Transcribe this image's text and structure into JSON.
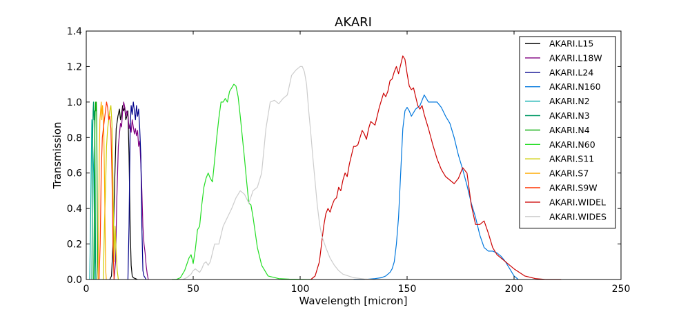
{
  "chart_data": {
    "type": "line",
    "title": "AKARI",
    "xlabel": "Wavelength [micron]",
    "ylabel": "Transmission",
    "xlim": [
      0,
      250
    ],
    "ylim": [
      0,
      1.4
    ],
    "xticks": [
      0,
      50,
      100,
      150,
      200,
      250
    ],
    "yticks": [
      0.0,
      0.2,
      0.4,
      0.6,
      0.8,
      1.0,
      1.2,
      1.4
    ],
    "xtick_labels": [
      "0",
      "50",
      "100",
      "150",
      "200",
      "250"
    ],
    "ytick_labels": [
      "0.0",
      "0.2",
      "0.4",
      "0.6",
      "0.8",
      "1.0",
      "1.2",
      "1.4"
    ],
    "grid": false,
    "legend_position": "top-right",
    "series": [
      {
        "name": "AKARI.L15",
        "color": "#000000",
        "x": [
          11.0,
          11.8,
          12.5,
          13.3,
          14.0,
          14.8,
          15.5,
          16.0,
          16.5,
          17.0,
          17.5,
          18.0,
          18.5,
          19.0,
          19.5,
          20.0,
          20.5,
          21.0,
          21.5,
          22.0,
          23.0,
          24.0
        ],
        "y": [
          0.0,
          0.02,
          0.2,
          0.55,
          0.85,
          0.92,
          0.96,
          0.9,
          0.93,
          0.98,
          0.95,
          0.97,
          0.9,
          0.92,
          0.95,
          0.7,
          0.3,
          0.08,
          0.02,
          0.01,
          0.005,
          0.0
        ]
      },
      {
        "name": "AKARI.L18W",
        "color": "#800080",
        "x": [
          13.0,
          13.7,
          14.3,
          15.0,
          15.5,
          16.0,
          16.5,
          17.0,
          17.5,
          18.0,
          18.5,
          19.0,
          19.5,
          20.0,
          20.5,
          21.0,
          21.5,
          22.0,
          22.5,
          23.0,
          23.5,
          24.0,
          24.5,
          25.0,
          25.5,
          26.0,
          26.5,
          27.0,
          27.5,
          28.0,
          28.5,
          29.0
        ],
        "y": [
          0.0,
          0.1,
          0.45,
          0.75,
          0.82,
          0.88,
          0.86,
          0.95,
          1.0,
          0.97,
          0.92,
          0.95,
          0.93,
          0.85,
          0.88,
          0.83,
          0.9,
          0.86,
          0.82,
          0.85,
          0.81,
          0.84,
          0.75,
          0.78,
          0.65,
          0.5,
          0.3,
          0.2,
          0.15,
          0.08,
          0.03,
          0.0
        ]
      },
      {
        "name": "AKARI.L24",
        "color": "#00008b",
        "x": [
          19.5,
          20.0,
          20.5,
          21.0,
          21.5,
          22.0,
          22.5,
          23.0,
          23.5,
          24.0,
          24.5,
          25.0,
          25.5,
          26.0,
          26.5,
          27.0,
          27.5,
          28.0
        ],
        "y": [
          0.0,
          0.3,
          0.85,
          0.98,
          0.93,
          1.0,
          0.95,
          0.9,
          0.98,
          0.92,
          0.96,
          0.85,
          0.7,
          0.3,
          0.05,
          0.02,
          0.01,
          0.0
        ]
      },
      {
        "name": "AKARI.N160",
        "color": "#0077dd",
        "x": [
          125,
          130,
          135,
          138,
          140,
          142,
          143,
          144,
          145,
          146,
          147,
          148,
          149,
          150,
          151,
          152,
          154,
          156,
          158,
          160,
          162,
          164,
          166,
          168,
          170,
          172,
          174,
          176,
          178,
          180,
          182,
          184,
          186,
          188,
          190,
          192,
          194,
          196,
          198,
          200,
          202
        ],
        "y": [
          0.0,
          0.0,
          0.005,
          0.01,
          0.02,
          0.04,
          0.06,
          0.1,
          0.2,
          0.35,
          0.6,
          0.85,
          0.95,
          0.97,
          0.95,
          0.92,
          0.96,
          0.98,
          1.04,
          1.0,
          1.0,
          1.0,
          0.97,
          0.92,
          0.88,
          0.8,
          0.7,
          0.62,
          0.53,
          0.43,
          0.35,
          0.25,
          0.18,
          0.16,
          0.16,
          0.15,
          0.13,
          0.1,
          0.06,
          0.02,
          0.0
        ]
      },
      {
        "name": "AKARI.N2",
        "color": "#00aaaa",
        "x": [
          1.6,
          2.0,
          2.3,
          2.6,
          2.9,
          3.2,
          3.5,
          3.8,
          4.1
        ],
        "y": [
          0.0,
          0.3,
          0.6,
          0.9,
          0.8,
          0.7,
          0.6,
          0.3,
          0.0
        ]
      },
      {
        "name": "AKARI.N3",
        "color": "#009966",
        "x": [
          2.6,
          2.8,
          3.0,
          3.2,
          3.4,
          3.6,
          3.8,
          4.0,
          4.2,
          4.4,
          4.6
        ],
        "y": [
          0.0,
          0.3,
          0.8,
          0.95,
          1.0,
          0.9,
          0.95,
          0.85,
          0.5,
          0.1,
          0.0
        ]
      },
      {
        "name": "AKARI.N4",
        "color": "#00aa00",
        "x": [
          3.5,
          3.7,
          3.9,
          4.1,
          4.3,
          4.5,
          4.7,
          4.9,
          5.1,
          5.3,
          5.5
        ],
        "y": [
          0.0,
          0.3,
          0.7,
          0.9,
          1.0,
          0.95,
          1.0,
          0.9,
          0.5,
          0.1,
          0.0
        ]
      },
      {
        "name": "AKARI.N60",
        "color": "#22dd22",
        "x": [
          40,
          42,
          44,
          46,
          48,
          49,
          50,
          51,
          52,
          53,
          54,
          55,
          56,
          57,
          58,
          59,
          60,
          61,
          62,
          63,
          64,
          65,
          66,
          67,
          68,
          69,
          70,
          71,
          72,
          73,
          74,
          75,
          76,
          77,
          78,
          80,
          82,
          85,
          90,
          95,
          100,
          105
        ],
        "y": [
          0.0,
          0.0,
          0.01,
          0.05,
          0.12,
          0.14,
          0.09,
          0.17,
          0.28,
          0.3,
          0.42,
          0.52,
          0.57,
          0.6,
          0.57,
          0.55,
          0.67,
          0.8,
          0.91,
          1.0,
          1.0,
          1.02,
          1.0,
          1.06,
          1.08,
          1.1,
          1.09,
          1.03,
          0.92,
          0.8,
          0.68,
          0.55,
          0.43,
          0.42,
          0.35,
          0.18,
          0.08,
          0.02,
          0.005,
          0.002,
          0.001,
          0.0
        ]
      },
      {
        "name": "AKARI.S11",
        "color": "#cccc00",
        "x": [
          8.0,
          8.5,
          9.0,
          9.5,
          10.0,
          10.5,
          11.0,
          11.5,
          12.0,
          12.5,
          13.0,
          13.5,
          14.0,
          14.5,
          15.0
        ],
        "y": [
          0.0,
          0.3,
          0.5,
          0.75,
          0.85,
          0.9,
          0.95,
          0.98,
          0.88,
          0.55,
          0.1,
          0.3,
          0.15,
          0.05,
          0.0
        ]
      },
      {
        "name": "AKARI.S7",
        "color": "#ffaa00",
        "x": [
          5.5,
          5.8,
          6.1,
          6.4,
          6.7,
          7.0,
          7.3,
          7.6,
          7.9,
          8.2,
          8.5,
          8.8,
          9.1,
          9.4
        ],
        "y": [
          0.0,
          0.3,
          0.7,
          0.9,
          0.95,
          1.0,
          0.9,
          0.98,
          0.92,
          0.85,
          0.6,
          0.3,
          0.05,
          0.0
        ]
      },
      {
        "name": "AKARI.S9W",
        "color": "#ff3300",
        "x": [
          6.0,
          6.5,
          7.0,
          7.5,
          8.0,
          8.5,
          9.0,
          9.5,
          10.0,
          10.5,
          11.0,
          11.5,
          12.0,
          12.5,
          13.0
        ],
        "y": [
          0.0,
          0.2,
          0.6,
          0.8,
          0.85,
          0.9,
          0.95,
          1.0,
          0.97,
          0.9,
          0.92,
          0.85,
          0.6,
          0.2,
          0.0
        ]
      },
      {
        "name": "AKARI.WIDEL",
        "color": "#cc0000",
        "x": [
          105,
          107,
          109,
          111,
          112,
          113,
          114,
          115,
          116,
          117,
          118,
          119,
          120,
          121,
          122,
          123,
          124,
          125,
          126,
          127,
          128,
          129,
          130,
          131,
          132,
          133,
          134,
          135,
          136,
          137,
          138,
          139,
          140,
          141,
          142,
          143,
          144,
          145,
          146,
          147,
          148,
          149,
          150,
          151,
          152,
          153,
          154,
          155,
          156,
          157,
          158,
          160,
          162,
          164,
          166,
          168,
          170,
          172,
          174,
          176,
          178,
          180,
          182,
          184,
          186,
          188,
          190,
          192,
          195,
          200,
          205,
          210,
          215,
          222
        ],
        "y": [
          0.0,
          0.02,
          0.1,
          0.3,
          0.37,
          0.4,
          0.38,
          0.42,
          0.45,
          0.46,
          0.52,
          0.5,
          0.56,
          0.6,
          0.58,
          0.65,
          0.7,
          0.75,
          0.75,
          0.76,
          0.8,
          0.84,
          0.82,
          0.79,
          0.85,
          0.89,
          0.88,
          0.87,
          0.92,
          0.97,
          1.01,
          1.05,
          1.03,
          1.06,
          1.12,
          1.13,
          1.17,
          1.2,
          1.16,
          1.21,
          1.26,
          1.24,
          1.16,
          1.09,
          1.07,
          1.08,
          1.03,
          0.98,
          0.96,
          0.98,
          0.93,
          0.85,
          0.76,
          0.68,
          0.62,
          0.58,
          0.56,
          0.54,
          0.57,
          0.63,
          0.6,
          0.42,
          0.31,
          0.31,
          0.33,
          0.26,
          0.18,
          0.14,
          0.11,
          0.06,
          0.02,
          0.005,
          0.0,
          0.0
        ]
      },
      {
        "name": "AKARI.WIDES",
        "color": "#cccccc",
        "x": [
          45,
          47,
          49,
          50,
          51,
          52,
          53,
          54,
          55,
          56,
          57,
          58,
          60,
          62,
          64,
          66,
          68,
          70,
          72,
          74,
          76,
          78,
          80,
          82,
          84,
          86,
          88,
          90,
          92,
          94,
          96,
          98,
          100,
          101,
          102,
          103,
          104,
          105,
          106,
          107,
          108,
          109,
          110,
          112,
          114,
          116,
          118,
          120,
          125,
          130,
          135
        ],
        "y": [
          0.0,
          0.01,
          0.03,
          0.05,
          0.06,
          0.05,
          0.04,
          0.06,
          0.09,
          0.1,
          0.08,
          0.1,
          0.2,
          0.2,
          0.3,
          0.35,
          0.4,
          0.46,
          0.5,
          0.48,
          0.43,
          0.5,
          0.52,
          0.6,
          0.85,
          1.0,
          1.01,
          0.99,
          1.02,
          1.04,
          1.15,
          1.18,
          1.2,
          1.2,
          1.17,
          1.1,
          0.95,
          0.82,
          0.68,
          0.55,
          0.42,
          0.32,
          0.25,
          0.18,
          0.12,
          0.08,
          0.05,
          0.03,
          0.01,
          0.003,
          0.0
        ]
      }
    ]
  }
}
